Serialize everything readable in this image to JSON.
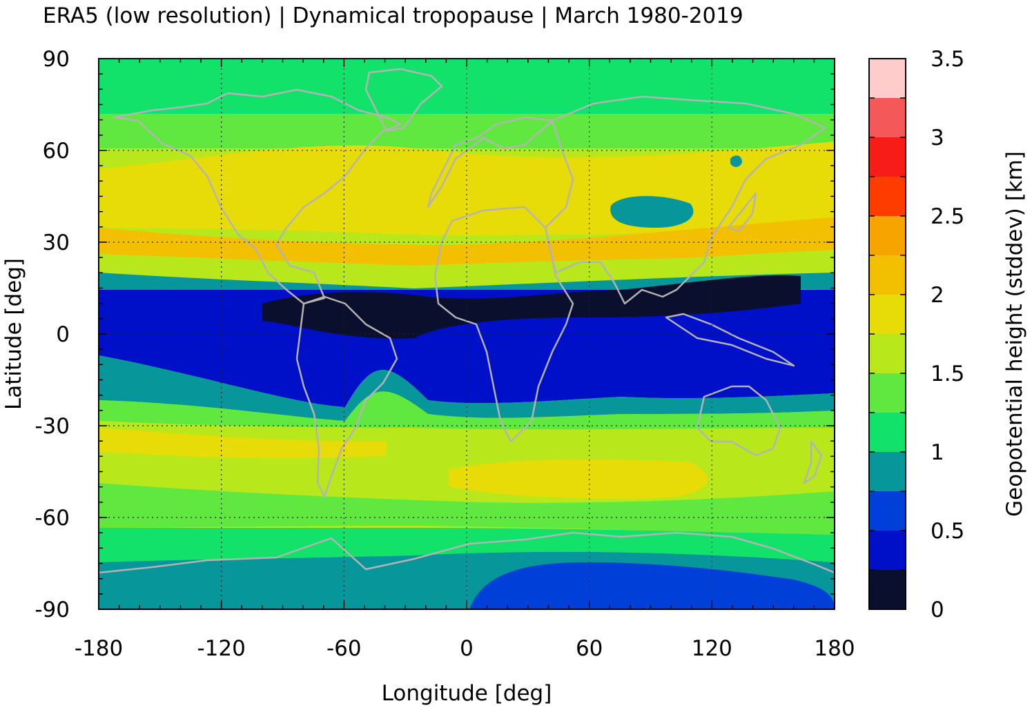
{
  "title": "ERA5 (low resolution) | Dynamical tropopause | March 1980-2019",
  "chart_data": {
    "type": "heatmap",
    "title": "ERA5 (low resolution) | Dynamical tropopause | March 1980-2019",
    "xlabel": "Longitude [deg]",
    "ylabel": "Latitude [deg]",
    "xlim": [
      -180,
      180
    ],
    "ylim": [
      -90,
      90
    ],
    "x_ticks": [
      "-180",
      "-120",
      "-60",
      "0",
      "60",
      "120",
      "180"
    ],
    "y_ticks": [
      "90",
      "60",
      "30",
      "0",
      "-30",
      "-60",
      "-90"
    ],
    "grid": true,
    "colorbar": {
      "label": "Geopotential height (stddev) [km]",
      "range": [
        0,
        3.5
      ],
      "ticks": [
        "0",
        "0.5",
        "1",
        "1.5",
        "2",
        "2.5",
        "3",
        "3.5"
      ],
      "levels": [
        0,
        0.25,
        0.5,
        0.75,
        1.0,
        1.25,
        1.5,
        1.75,
        2.0,
        2.25,
        2.5,
        2.75,
        3.0,
        3.25,
        3.5
      ],
      "colors": [
        "#0b0f2e",
        "#0010c8",
        "#0040d8",
        "#07969a",
        "#12e26a",
        "#60e840",
        "#b8e81c",
        "#e8dc08",
        "#f2c000",
        "#f7a400",
        "#ff3c00",
        "#f81c18",
        "#f45858",
        "#ffcccc"
      ]
    }
  }
}
